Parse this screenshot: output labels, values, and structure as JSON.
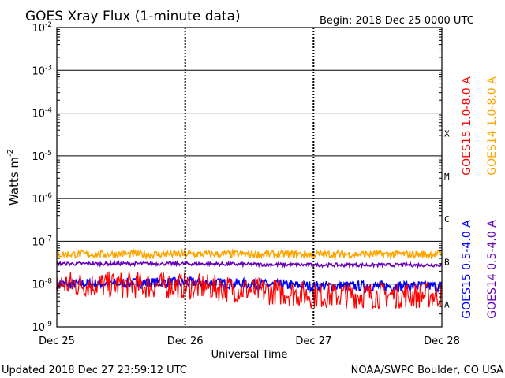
{
  "chart_data": {
    "type": "line",
    "title": "GOES Xray Flux (1-minute data)",
    "begin": "Begin:  2018 Dec 25 0000 UTC",
    "ylabel": "Watts m",
    "ylabel_exp": "-2",
    "xlabel": "Universal Time",
    "y_scale": "log",
    "ylim": [
      1e-09,
      0.01
    ],
    "y_ticks": [
      {
        "base": "10",
        "exp": "-2"
      },
      {
        "base": "10",
        "exp": "-3"
      },
      {
        "base": "10",
        "exp": "-4"
      },
      {
        "base": "10",
        "exp": "-5"
      },
      {
        "base": "10",
        "exp": "-6"
      },
      {
        "base": "10",
        "exp": "-7"
      },
      {
        "base": "10",
        "exp": "-8"
      },
      {
        "base": "10",
        "exp": "-9"
      }
    ],
    "x_ticks": [
      "Dec 25",
      "Dec 26",
      "Dec 27",
      "Dec 28"
    ],
    "flare_classes": [
      "X",
      "M",
      "C",
      "B",
      "A"
    ],
    "grid": true,
    "legend_position": "right",
    "series": [
      {
        "name": "GOES15 1.0-8.0 A",
        "color": "#ff0000",
        "level_by_day": [
          1e-08,
          9e-09,
          5.5e-09
        ]
      },
      {
        "name": "GOES14 1.0-8.0 A",
        "color": "#ffa500",
        "level_by_day": [
          5e-08,
          5e-08,
          5e-08
        ]
      },
      {
        "name": "GOES15 0.5-4.0 A",
        "color": "#0000ff",
        "level_by_day": [
          1e-08,
          1.1e-08,
          9e-09
        ]
      },
      {
        "name": "GOES14 0.5-4.0 A",
        "color": "#6600bb",
        "level_by_day": [
          3e-08,
          3e-08,
          2.8e-08
        ]
      }
    ]
  },
  "footer": {
    "updated": "Updated 2018 Dec 27 23:59:12 UTC",
    "credit": "NOAA/SWPC Boulder, CO USA"
  }
}
